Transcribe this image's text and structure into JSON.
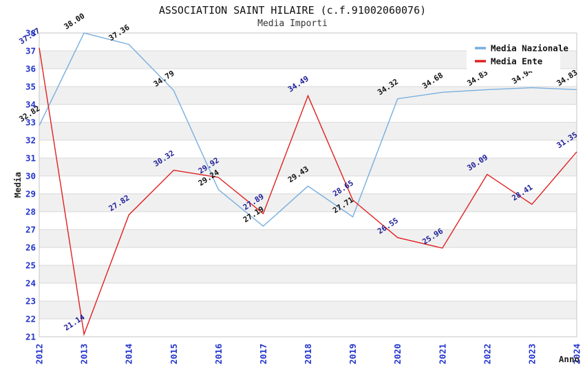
{
  "page": {
    "background": "#ffffff"
  },
  "header": {
    "title": "ASSOCIATION SAINT HILAIRE (c.f.91002060076)",
    "subtitle": "Media Importi"
  },
  "legend": {
    "position": "top-right",
    "background": "#ffffff",
    "items": [
      {
        "label": "Media Nazionale",
        "color": "#77aedd"
      },
      {
        "label": "Media Ente",
        "color": "#e02020"
      }
    ]
  },
  "chart_data": {
    "type": "line",
    "x": [
      2012,
      2013,
      2014,
      2015,
      2016,
      2017,
      2018,
      2019,
      2020,
      2021,
      2022,
      2023,
      2024
    ],
    "xlabel": "Anno",
    "ylabel": "Media",
    "ylim": [
      21,
      38
    ],
    "ytick_step": 1,
    "grid": "horizontal gridlines with alternating light-gray bands (22-23, 24-25, ... 36-37)",
    "legend_position": "top-right",
    "series": [
      {
        "name": "Media Nazionale",
        "color": "#77aedd",
        "label_color": "#111111",
        "values": [
          32.82,
          38.0,
          37.36,
          34.79,
          29.24,
          27.19,
          29.43,
          27.71,
          34.32,
          34.68,
          34.83,
          34.94,
          34.83
        ]
      },
      {
        "name": "Media Ente",
        "color": "#e02020",
        "label_color": "#1f1f99",
        "values": [
          37.17,
          21.14,
          27.82,
          30.32,
          29.92,
          27.89,
          34.49,
          28.65,
          26.55,
          25.96,
          30.09,
          28.41,
          31.35
        ]
      }
    ],
    "style": {
      "band_fill": "#f0f0f0",
      "gridline_color": "#d9d9d9",
      "border_color": "#c4c4c4",
      "tick_label_color": "#2233cc",
      "axis_title_color": "#222222"
    }
  }
}
